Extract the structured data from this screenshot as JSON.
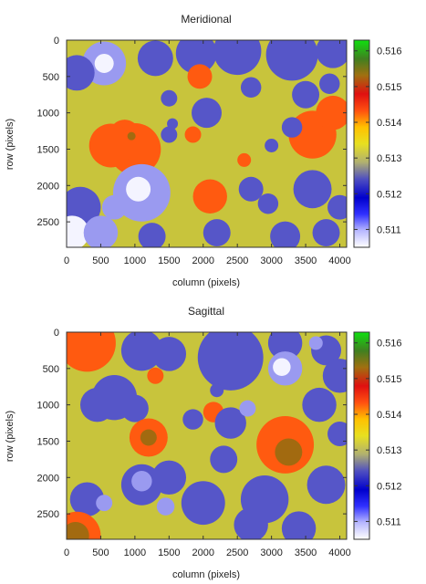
{
  "chart_data": [
    {
      "type": "heatmap",
      "title": "Meridional",
      "xlabel": "column (pixels)",
      "ylabel": "row (pixels)",
      "xlim": [
        0,
        4100
      ],
      "ylim": [
        2850,
        0
      ],
      "xticks": [
        0,
        500,
        1000,
        1500,
        2000,
        2500,
        3000,
        3500,
        4000
      ],
      "yticks": [
        0,
        500,
        1000,
        1500,
        2000,
        2500
      ],
      "colorbar": {
        "range": [
          0.5105,
          0.5163
        ],
        "ticks": [
          "0.516",
          "0.515",
          "0.514",
          "0.513",
          "0.512",
          "0.511"
        ]
      },
      "levels": {
        "background": 0.5128,
        "blobs": [
          {
            "x": 550,
            "y": 320,
            "r": 320,
            "v": 0.5113
          },
          {
            "x": 550,
            "y": 320,
            "r": 140,
            "v": 0.5106
          },
          {
            "x": 150,
            "y": 450,
            "r": 260,
            "v": 0.5117
          },
          {
            "x": 1300,
            "y": 250,
            "r": 260,
            "v": 0.5117
          },
          {
            "x": 1900,
            "y": 180,
            "r": 300,
            "v": 0.5117
          },
          {
            "x": 2500,
            "y": 150,
            "r": 350,
            "v": 0.5117
          },
          {
            "x": 3300,
            "y": 200,
            "r": 380,
            "v": 0.5117
          },
          {
            "x": 3900,
            "y": 150,
            "r": 250,
            "v": 0.5117
          },
          {
            "x": 1950,
            "y": 500,
            "r": 180,
            "v": 0.514
          },
          {
            "x": 2700,
            "y": 650,
            "r": 150,
            "v": 0.5117
          },
          {
            "x": 3500,
            "y": 750,
            "r": 200,
            "v": 0.5117
          },
          {
            "x": 3850,
            "y": 600,
            "r": 150,
            "v": 0.5117
          },
          {
            "x": 1500,
            "y": 800,
            "r": 120,
            "v": 0.5117
          },
          {
            "x": 2050,
            "y": 1000,
            "r": 220,
            "v": 0.5117
          },
          {
            "x": 1000,
            "y": 1500,
            "r": 380,
            "v": 0.514
          },
          {
            "x": 850,
            "y": 1300,
            "r": 220,
            "v": 0.5142
          },
          {
            "x": 650,
            "y": 1450,
            "r": 320,
            "v": 0.514
          },
          {
            "x": 950,
            "y": 1320,
            "r": 60,
            "v": 0.5148
          },
          {
            "x": 1500,
            "y": 1300,
            "r": 120,
            "v": 0.5117
          },
          {
            "x": 1550,
            "y": 1150,
            "r": 80,
            "v": 0.5117
          },
          {
            "x": 1850,
            "y": 1300,
            "r": 120,
            "v": 0.514
          },
          {
            "x": 3600,
            "y": 1300,
            "r": 350,
            "v": 0.514
          },
          {
            "x": 3900,
            "y": 1000,
            "r": 250,
            "v": 0.514
          },
          {
            "x": 3300,
            "y": 1200,
            "r": 150,
            "v": 0.5117
          },
          {
            "x": 3000,
            "y": 1450,
            "r": 100,
            "v": 0.5117
          },
          {
            "x": 2600,
            "y": 1650,
            "r": 100,
            "v": 0.514
          },
          {
            "x": 1100,
            "y": 2100,
            "r": 420,
            "v": 0.5113
          },
          {
            "x": 1050,
            "y": 2050,
            "r": 180,
            "v": 0.5106
          },
          {
            "x": 700,
            "y": 2300,
            "r": 180,
            "v": 0.5113
          },
          {
            "x": 200,
            "y": 2300,
            "r": 300,
            "v": 0.5117
          },
          {
            "x": 80,
            "y": 2650,
            "r": 250,
            "v": 0.5106
          },
          {
            "x": 500,
            "y": 2650,
            "r": 250,
            "v": 0.5113
          },
          {
            "x": 1250,
            "y": 2700,
            "r": 200,
            "v": 0.5117
          },
          {
            "x": 2100,
            "y": 2150,
            "r": 250,
            "v": 0.514
          },
          {
            "x": 2700,
            "y": 2050,
            "r": 180,
            "v": 0.5117
          },
          {
            "x": 2950,
            "y": 2250,
            "r": 150,
            "v": 0.5117
          },
          {
            "x": 3600,
            "y": 2050,
            "r": 280,
            "v": 0.5117
          },
          {
            "x": 4000,
            "y": 2300,
            "r": 180,
            "v": 0.5117
          },
          {
            "x": 2200,
            "y": 2650,
            "r": 200,
            "v": 0.5117
          },
          {
            "x": 3200,
            "y": 2700,
            "r": 220,
            "v": 0.5117
          },
          {
            "x": 3800,
            "y": 2650,
            "r": 200,
            "v": 0.5117
          }
        ]
      }
    },
    {
      "type": "heatmap",
      "title": "Sagittal",
      "xlabel": "column (pixels)",
      "ylabel": "row (pixels)",
      "xlim": [
        0,
        4100
      ],
      "ylim": [
        2850,
        0
      ],
      "xticks": [
        0,
        500,
        1000,
        1500,
        2000,
        2500,
        3000,
        3500,
        4000
      ],
      "yticks": [
        0,
        500,
        1000,
        1500,
        2000,
        2500
      ],
      "colorbar": {
        "range": [
          0.5105,
          0.5163
        ],
        "ticks": [
          "0.516",
          "0.515",
          "0.514",
          "0.513",
          "0.512",
          "0.511"
        ]
      },
      "levels": {
        "background": 0.5128,
        "blobs": [
          {
            "x": 300,
            "y": 150,
            "r": 420,
            "v": 0.514
          },
          {
            "x": 1100,
            "y": 250,
            "r": 300,
            "v": 0.5117
          },
          {
            "x": 1500,
            "y": 300,
            "r": 250,
            "v": 0.5117
          },
          {
            "x": 2400,
            "y": 350,
            "r": 480,
            "v": 0.5117
          },
          {
            "x": 3200,
            "y": 150,
            "r": 250,
            "v": 0.5117
          },
          {
            "x": 3200,
            "y": 500,
            "r": 250,
            "v": 0.5113
          },
          {
            "x": 3150,
            "y": 480,
            "r": 130,
            "v": 0.5106
          },
          {
            "x": 3800,
            "y": 250,
            "r": 220,
            "v": 0.5117
          },
          {
            "x": 3650,
            "y": 150,
            "r": 100,
            "v": 0.5113
          },
          {
            "x": 4000,
            "y": 600,
            "r": 250,
            "v": 0.5117
          },
          {
            "x": 700,
            "y": 900,
            "r": 330,
            "v": 0.5117
          },
          {
            "x": 450,
            "y": 1000,
            "r": 250,
            "v": 0.5117
          },
          {
            "x": 1000,
            "y": 1050,
            "r": 200,
            "v": 0.5117
          },
          {
            "x": 1300,
            "y": 600,
            "r": 120,
            "v": 0.514
          },
          {
            "x": 1200,
            "y": 1450,
            "r": 280,
            "v": 0.514
          },
          {
            "x": 1200,
            "y": 1450,
            "r": 120,
            "v": 0.5148
          },
          {
            "x": 1850,
            "y": 1200,
            "r": 150,
            "v": 0.5117
          },
          {
            "x": 2150,
            "y": 1100,
            "r": 150,
            "v": 0.514
          },
          {
            "x": 2400,
            "y": 1250,
            "r": 230,
            "v": 0.5117
          },
          {
            "x": 2300,
            "y": 1750,
            "r": 200,
            "v": 0.5117
          },
          {
            "x": 2650,
            "y": 1050,
            "r": 120,
            "v": 0.5113
          },
          {
            "x": 3200,
            "y": 1550,
            "r": 420,
            "v": 0.514
          },
          {
            "x": 3250,
            "y": 1650,
            "r": 200,
            "v": 0.5148
          },
          {
            "x": 3700,
            "y": 1000,
            "r": 250,
            "v": 0.5117
          },
          {
            "x": 4000,
            "y": 1400,
            "r": 180,
            "v": 0.5117
          },
          {
            "x": 3800,
            "y": 2100,
            "r": 280,
            "v": 0.5117
          },
          {
            "x": 2000,
            "y": 2350,
            "r": 320,
            "v": 0.5117
          },
          {
            "x": 1500,
            "y": 2000,
            "r": 250,
            "v": 0.5117
          },
          {
            "x": 1100,
            "y": 2100,
            "r": 300,
            "v": 0.5117
          },
          {
            "x": 1100,
            "y": 2050,
            "r": 150,
            "v": 0.5113
          },
          {
            "x": 1450,
            "y": 2400,
            "r": 130,
            "v": 0.5113
          },
          {
            "x": 300,
            "y": 2300,
            "r": 250,
            "v": 0.5117
          },
          {
            "x": 550,
            "y": 2350,
            "r": 120,
            "v": 0.5113
          },
          {
            "x": 150,
            "y": 2800,
            "r": 350,
            "v": 0.514
          },
          {
            "x": 130,
            "y": 2800,
            "r": 200,
            "v": 0.5148
          },
          {
            "x": 2900,
            "y": 2300,
            "r": 350,
            "v": 0.5117
          },
          {
            "x": 2700,
            "y": 2650,
            "r": 250,
            "v": 0.5117
          },
          {
            "x": 3400,
            "y": 2700,
            "r": 250,
            "v": 0.5117
          },
          {
            "x": 2200,
            "y": 800,
            "r": 100,
            "v": 0.5117
          }
        ]
      }
    }
  ]
}
